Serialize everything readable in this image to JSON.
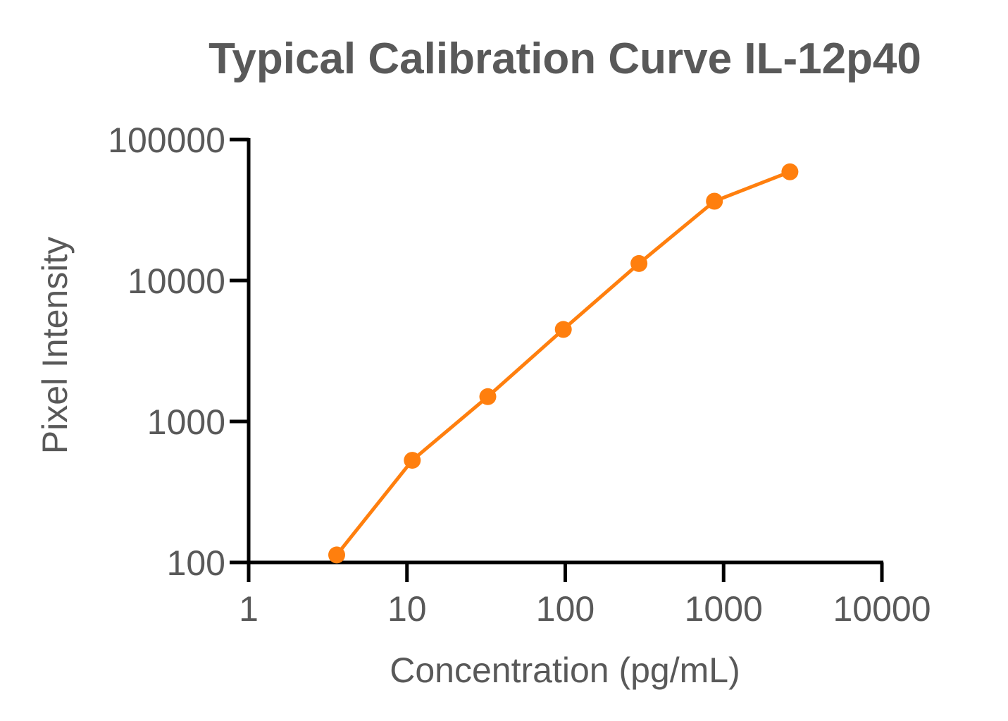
{
  "chart_data": {
    "type": "line",
    "title": "Typical Calibration Curve IL-12p40",
    "xlabel": "Concentration (pg/mL)",
    "ylabel": "Pixel Intensity",
    "x_scale": "log",
    "y_scale": "log",
    "xlim": [
      1,
      10000
    ],
    "ylim": [
      100,
      100000
    ],
    "x_ticks": [
      "1",
      "10",
      "100",
      "1000",
      "10000"
    ],
    "y_ticks": [
      "100",
      "1000",
      "10000",
      "100000"
    ],
    "grid": false,
    "legend": "none",
    "series_color": "#ff7f0e",
    "series": [
      {
        "x": [
          3.6,
          10.8,
          32.4,
          97.2,
          292,
          875,
          2625
        ],
        "y": [
          113,
          530,
          1500,
          4500,
          13200,
          36500,
          59000
        ]
      }
    ]
  }
}
